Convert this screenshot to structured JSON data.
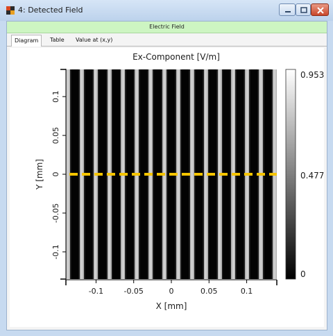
{
  "window": {
    "title": "4: Detected Field",
    "buttons": [
      "minimize",
      "maximize",
      "close"
    ]
  },
  "panel": {
    "header": "Electric Field",
    "tabs": [
      "Diagram",
      "Table",
      "Value at (x,y)"
    ],
    "active_tab": "Diagram"
  },
  "chart_data": {
    "type": "heatmap",
    "title": "Ex-Component  [V/m]",
    "xlabel": "X [mm]",
    "ylabel": "Y [mm]",
    "xlim": [
      -0.14,
      0.14
    ],
    "ylim": [
      -0.135,
      0.135
    ],
    "xticks": [
      -0.1,
      -0.05,
      0,
      0.05,
      0.1
    ],
    "xtick_labels": [
      "-0.1",
      "-0.05",
      "0",
      "0.05",
      "0.1"
    ],
    "yticks": [
      -0.1,
      -0.05,
      0,
      0.05,
      0.1
    ],
    "ytick_labels": [
      "-0.1",
      "-0.05",
      "0",
      "0.05",
      "0.1"
    ],
    "pattern": "vertical fringes (intensity varies with x only)",
    "fringe_period_mm": 0.0183,
    "colormap": "grayscale black to white",
    "colorbar_labels": [
      "0.953",
      "0.477",
      "0"
    ],
    "colorbar_range": [
      0,
      0.953
    ],
    "cut_line": {
      "axis": "y",
      "value": 0,
      "color": "#f5c400",
      "style": "dashed"
    }
  }
}
